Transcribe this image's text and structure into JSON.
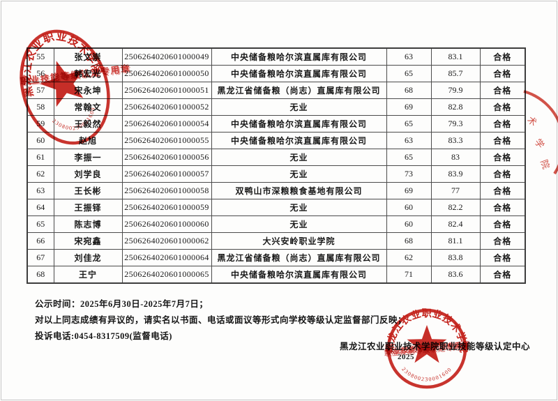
{
  "colors": {
    "seal_red": "#c5231c",
    "table_border": "#4b4b4b",
    "text": "#191919"
  },
  "table": {
    "rows": [
      {
        "no": "55",
        "name": "张文崇",
        "id": "2506264020601000049",
        "employer": "中央储备粮哈尔滨直属库有限公司",
        "score1": "63",
        "score2": "83.1",
        "status": "合格"
      },
      {
        "no": "56",
        "name": "韩宏光",
        "id": "2506264020601000050",
        "employer": "中央储备粮哈尔滨直属库有限公司",
        "score1": "65",
        "score2": "85.7",
        "status": "合格"
      },
      {
        "no": "57",
        "name": "宋永坤",
        "id": "2506264020601000051",
        "employer": "黑龙江省储备粮（尚志）直属库有限公司",
        "score1": "68",
        "score2": "79.9",
        "status": "合格"
      },
      {
        "no": "58",
        "name": "常翰文",
        "id": "2506264020601000052",
        "employer": "无业",
        "score1": "69",
        "score2": "82.8",
        "status": "合格"
      },
      {
        "no": "59",
        "name": "王毅然",
        "id": "2506264020601000054",
        "employer": "中央储备粮哈尔滨直属库有限公司",
        "score1": "65",
        "score2": "79.3",
        "status": "合格"
      },
      {
        "no": "60",
        "name": "赵旭",
        "id": "2506264020601000055",
        "employer": "中央储备粮哈尔滨直属库有限公司",
        "score1": "63",
        "score2": "83.3",
        "status": "合格"
      },
      {
        "no": "61",
        "name": "李振一",
        "id": "2506264020601000056",
        "employer": "无业",
        "score1": "65",
        "score2": "83",
        "status": "合格"
      },
      {
        "no": "62",
        "name": "刘学良",
        "id": "2506264020601000057",
        "employer": "无业",
        "score1": "73",
        "score2": "83.9",
        "status": "合格"
      },
      {
        "no": "63",
        "name": "王长彬",
        "id": "2506264020601000058",
        "employer": "双鸭山市深粮粮食基地有限公司",
        "score1": "69",
        "score2": "77",
        "status": "合格"
      },
      {
        "no": "64",
        "name": "王振铎",
        "id": "2506264020601000059",
        "employer": "无业",
        "score1": "60",
        "score2": "82.2",
        "status": "合格"
      },
      {
        "no": "65",
        "name": "陈志博",
        "id": "2506264020601000060",
        "employer": "无业",
        "score1": "60",
        "score2": "82.4",
        "status": "合格"
      },
      {
        "no": "66",
        "name": "宋宛鑫",
        "id": "2506264020601000062",
        "employer": "大兴安岭职业学院",
        "score1": "68",
        "score2": "81.1",
        "status": "合格"
      },
      {
        "no": "67",
        "name": "刘佳龙",
        "id": "2506264020601000064",
        "employer": "黑龙江省储备粮（尚志）直属库有限公司",
        "score1": "62",
        "score2": "83.8",
        "status": "合格"
      },
      {
        "no": "68",
        "name": "王宁",
        "id": "2506264020601000065",
        "employer": "中央储备粮哈尔滨直属库有限公司",
        "score1": "71",
        "score2": "83.6",
        "status": "合格"
      }
    ]
  },
  "footer": {
    "publicity_line": "公示时间：2025年6月30日-2025年7月7日；",
    "objection_line": "对以上同志成绩有异议的，请实名以书面、电话或面议等形式向学校等级认定监督部门反映；",
    "phone_line": "投诉电话:0454-8317509(监督电话)",
    "issuer_line": "黑龙江农业职业技术学院职业技能等级认定中心",
    "date_partial": "2025"
  },
  "stamps": {
    "top_left": {
      "arc_text": "黑龙江农业职业技术学院",
      "band_text": "职业技能等级认定专用章",
      "code": "230800230001600",
      "icon": "star-icon"
    },
    "bottom_right": {
      "arc_text": "黑龙江农业职业技术学院",
      "band_text": "职业技能等级认定专用章",
      "code": "230800230001600",
      "icon": "star-icon"
    },
    "right_edge": {
      "chars": [
        "术",
        "学",
        "院"
      ]
    }
  }
}
